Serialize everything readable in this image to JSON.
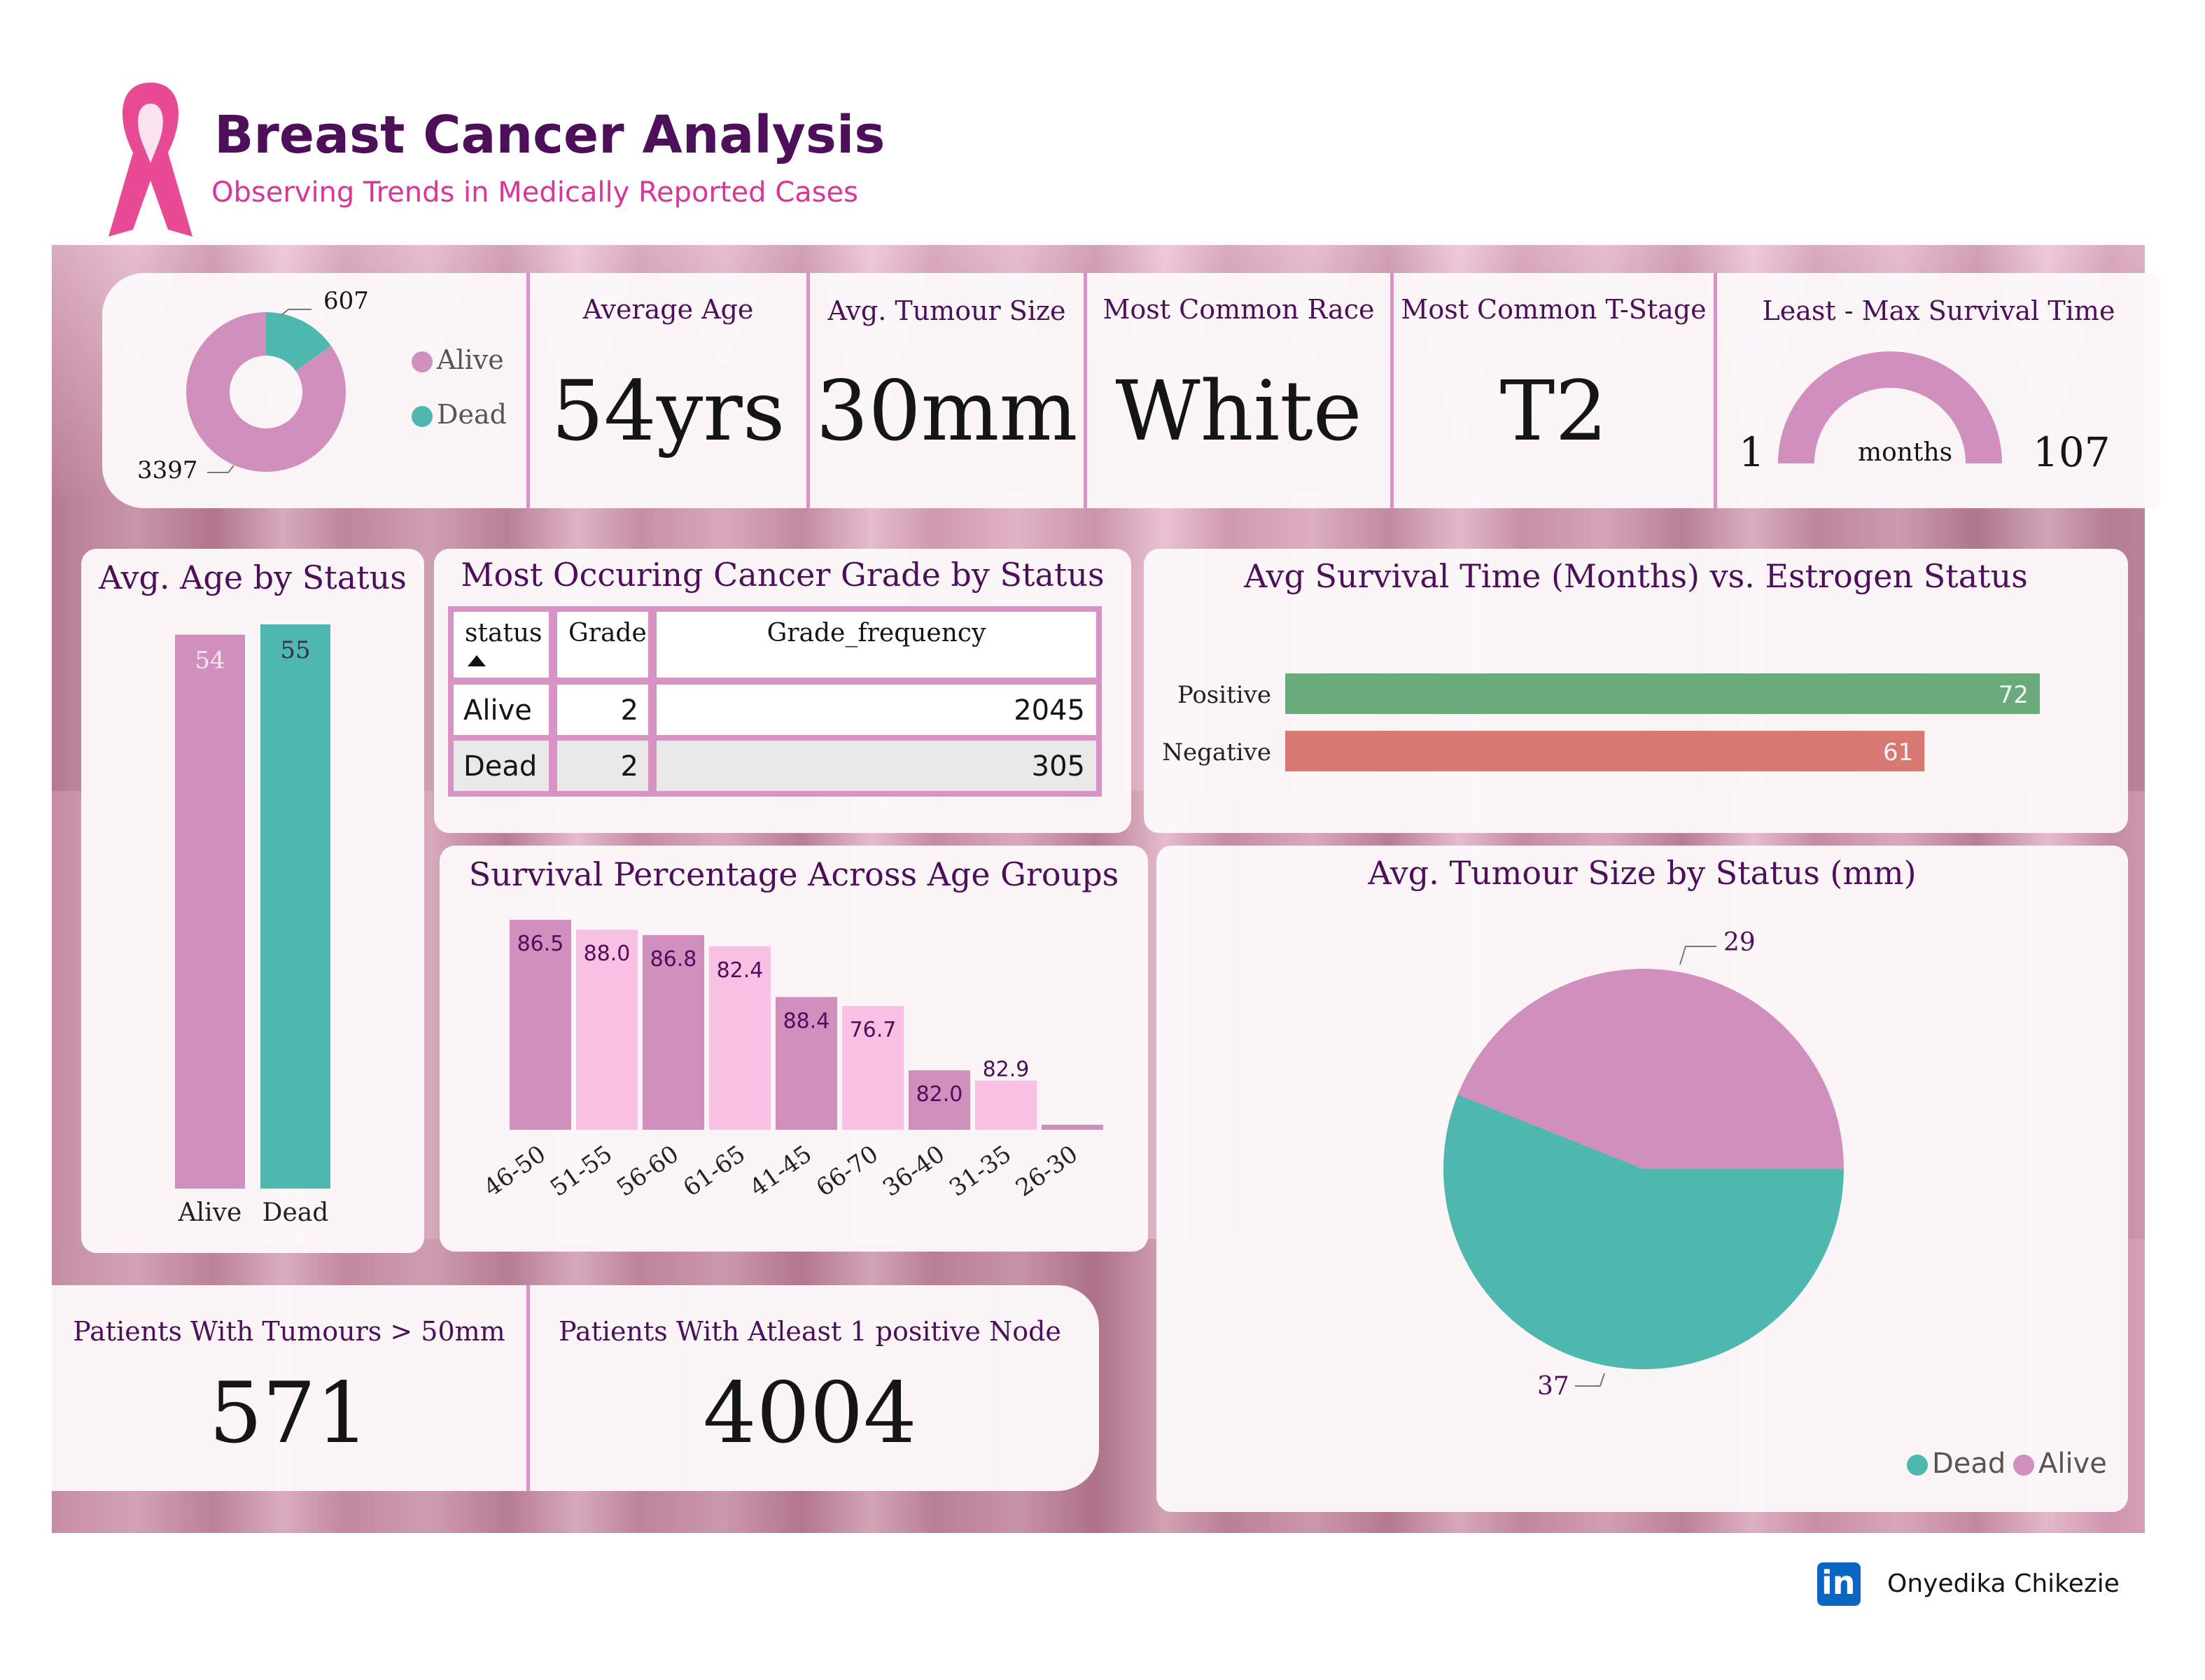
{
  "header": {
    "title": "Breast Cancer Analysis",
    "subtitle": "Observing Trends in Medically Reported Cases"
  },
  "kpis": {
    "status_donut": {
      "legend": [
        "Alive",
        "Dead"
      ],
      "alive_label": "3397",
      "dead_label": "607"
    },
    "average_age": {
      "title": "Average Age",
      "value": "54yrs"
    },
    "avg_tumour_size": {
      "title": "Avg. Tumour Size",
      "value": "30mm"
    },
    "common_race": {
      "title": "Most Common Race",
      "value": "White"
    },
    "common_tstage": {
      "title": "Most Common T-Stage",
      "value": "T2"
    },
    "survival_time": {
      "title": "Least - Max Survival Time",
      "min": "1",
      "max": "107",
      "unit": "months"
    },
    "tumours_50": {
      "title": "Patients With Tumours > 50mm",
      "value": "571"
    },
    "positive_node": {
      "title": "Patients With Atleast 1 positive Node",
      "value": "4004"
    }
  },
  "grade_table": {
    "title": "Most Occuring Cancer Grade by Status",
    "columns": [
      "status",
      "Grade",
      "Grade_frequency"
    ],
    "rows": [
      {
        "status": "Alive",
        "grade": "2",
        "freq": "2045"
      },
      {
        "status": "Dead",
        "grade": "2",
        "freq": "305"
      }
    ]
  },
  "colors": {
    "alive": "#d08fbd",
    "dead": "#4eb8ae",
    "positive": "#6aab7c",
    "negative": "#d77972",
    "light_pink": "#f8c1e3",
    "title": "#4d0f5a",
    "subtitle": "#d9369c"
  },
  "footer": {
    "author": "Onyedika Chikezie",
    "linkedin_icon": "linkedin-icon"
  },
  "chart_data": [
    {
      "id": "age_by_status",
      "type": "bar",
      "title": "Avg. Age by Status",
      "categories": [
        "Alive",
        "Dead"
      ],
      "values": [
        54,
        55
      ],
      "ylim": [
        0,
        55
      ]
    },
    {
      "id": "survival_vs_estrogen",
      "type": "bar",
      "orientation": "horizontal",
      "title": "Avg Survival Time (Months) vs. Estrogen Status",
      "categories": [
        "Positive",
        "Negative"
      ],
      "values": [
        72,
        61
      ],
      "xlim": [
        0,
        72
      ]
    },
    {
      "id": "survival_by_age",
      "type": "bar",
      "title": "Survival Percentage Across Age Groups",
      "categories": [
        "46-50",
        "51-55",
        "56-60",
        "61-65",
        "41-45",
        "66-70",
        "36-40",
        "31-35",
        "26-30"
      ],
      "bar_heights": [
        86.5,
        82.4,
        80.2,
        75.6,
        54.7,
        51.0,
        24.5,
        20.3,
        2.1
      ],
      "labels": [
        "86.5",
        "88.0",
        "86.8",
        "82.4",
        "88.4",
        "76.7",
        "82.0",
        "82.9",
        ""
      ],
      "top_label": "82.9"
    },
    {
      "id": "status_donut",
      "type": "pie",
      "categories": [
        "Alive",
        "Dead"
      ],
      "values": [
        3397,
        607
      ]
    },
    {
      "id": "tumour_by_status",
      "type": "pie",
      "title": "Avg. Tumour Size by Status (mm)",
      "categories": [
        "Dead",
        "Alive"
      ],
      "values": [
        37,
        29
      ],
      "legend": [
        "Dead",
        "Alive"
      ],
      "legend_position": "bottom-right"
    }
  ]
}
